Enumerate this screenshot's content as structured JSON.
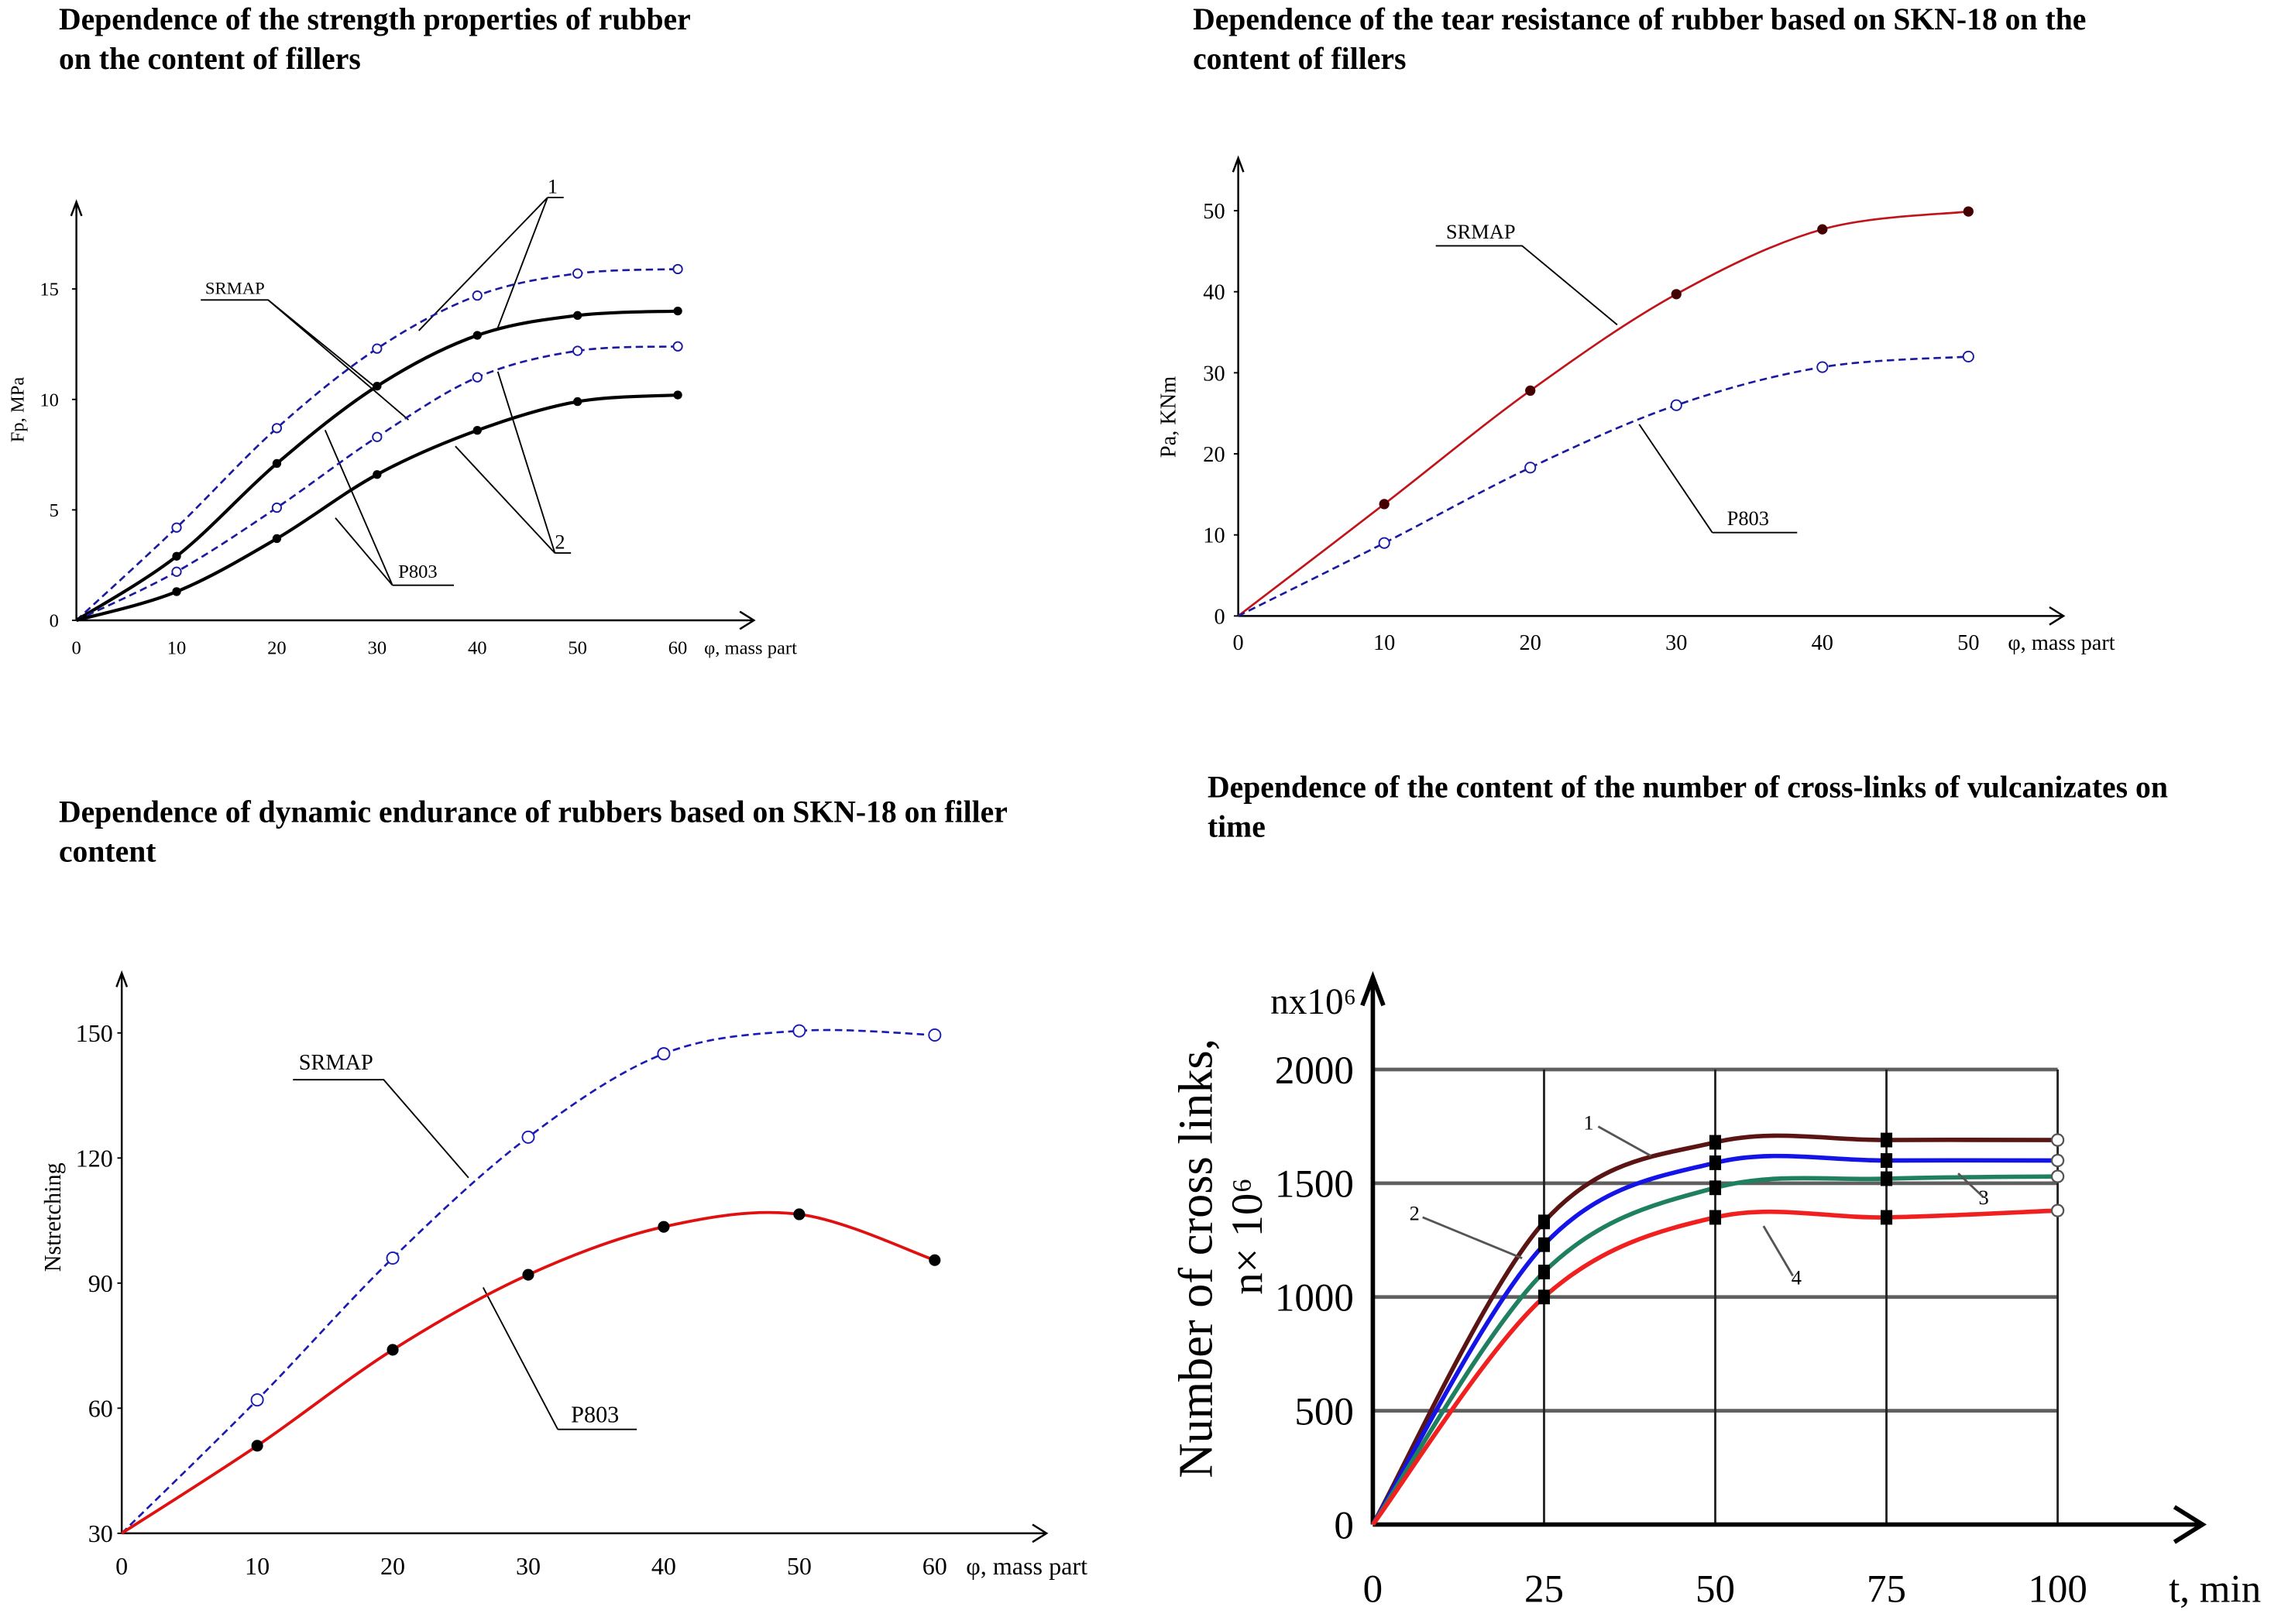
{
  "chart_data": [
    {
      "type": "line",
      "title": [
        "Dependence of the strength properties of rubber",
        "on the content of fillers"
      ],
      "xlabel": "φ, mass part",
      "ylabel": "Fp, MPa",
      "xticks": [
        0,
        10,
        20,
        30,
        40,
        50,
        60
      ],
      "yticks": [
        0,
        5,
        10,
        15
      ],
      "xlim": [
        0,
        66
      ],
      "ylim": [
        0,
        19
      ],
      "grid": false,
      "x": [
        0,
        10,
        20,
        30,
        40,
        50,
        60
      ],
      "series": [
        {
          "values": [
            0,
            4.2,
            8.7,
            12.3,
            14.7,
            15.7,
            15.9
          ],
          "color": "#1a1aa0",
          "style": "dashed",
          "marker": "open-circle"
        },
        {
          "values": [
            0,
            2.9,
            7.1,
            10.6,
            12.9,
            13.8,
            14.0
          ],
          "color": "#000000",
          "style": "solid",
          "marker": "filled-circle"
        },
        {
          "values": [
            0,
            2.2,
            5.1,
            8.3,
            11.0,
            12.2,
            12.4
          ],
          "color": "#1a1aa0",
          "style": "dashed",
          "marker": "open-circle"
        },
        {
          "values": [
            0,
            1.3,
            3.7,
            6.6,
            8.6,
            9.9,
            10.2
          ],
          "color": "#000000",
          "style": "solid",
          "marker": "filled-circle"
        }
      ],
      "annotations": [
        "SRMAP",
        "P803",
        "1",
        "2"
      ]
    },
    {
      "type": "line",
      "title": [
        "Dependence of the tear resistance of rubber based on SKN-18 on the",
        "content of fillers"
      ],
      "xlabel": "φ, mass part",
      "ylabel": "Pa, KNm",
      "xticks": [
        0,
        10,
        20,
        30,
        40,
        50
      ],
      "yticks": [
        0,
        10,
        20,
        30,
        40,
        50
      ],
      "xlim": [
        0,
        56
      ],
      "ylim": [
        0,
        56
      ],
      "grid": false,
      "x": [
        0,
        10,
        20,
        30,
        40,
        50
      ],
      "series": [
        {
          "name": "SRMAP",
          "values": [
            0,
            13.8,
            27.8,
            39.7,
            47.7,
            49.9
          ],
          "color": "#c0141a",
          "style": "solid",
          "marker": "filled-circle"
        },
        {
          "name": "P803",
          "values": [
            0,
            9.0,
            18.3,
            26.0,
            30.7,
            32.0
          ],
          "color": "#1a1aa0",
          "style": "dashed",
          "marker": "open-circle"
        }
      ],
      "annotations": [
        "SRMAP",
        "P803"
      ]
    },
    {
      "type": "line",
      "title": [
        "Dependence of dynamic endurance of rubbers based on SKN-18 on filler",
        "content"
      ],
      "xlabel": "φ, mass part",
      "ylabel": "Nstretching",
      "xticks": [
        0,
        10,
        20,
        30,
        40,
        50,
        60
      ],
      "yticks": [
        30,
        60,
        90,
        120,
        150
      ],
      "xlim": [
        0,
        68
      ],
      "ylim": [
        30,
        164
      ],
      "grid": false,
      "x": [
        0,
        10,
        20,
        30,
        40,
        50,
        60
      ],
      "series": [
        {
          "name": "SRMAP",
          "values": [
            30,
            62,
            96,
            125,
            145,
            150.5,
            149.5
          ],
          "color": "#1a1ab4",
          "style": "dashed",
          "marker": "open-circle"
        },
        {
          "name": "P803",
          "values": [
            30,
            51,
            74,
            92,
            103.5,
            106.5,
            95.5
          ],
          "color": "#e01010",
          "style": "solid",
          "marker": "filled-circle"
        }
      ],
      "annotations": [
        "SRMAP",
        "P803"
      ]
    },
    {
      "type": "line",
      "title": [
        "Dependence of the content of the number of cross-links of vulcanizates on",
        "time"
      ],
      "xlabel": "t, min",
      "ylabel": [
        "Number of cross links,",
        "n× 10⁶"
      ],
      "yunit": "nx10⁶",
      "xticks": [
        0,
        25,
        50,
        75,
        100
      ],
      "yticks": [
        0,
        500,
        1000,
        1500,
        2000
      ],
      "xlim": [
        0,
        120
      ],
      "ylim": [
        0,
        2350
      ],
      "grid": true,
      "x": [
        0,
        25,
        50,
        75,
        100
      ],
      "series": [
        {
          "name": "1",
          "values": [
            0,
            1330,
            1680,
            1690,
            1690
          ],
          "color": "#5a1414",
          "style": "solid",
          "marker": "square"
        },
        {
          "name": "2",
          "values": [
            0,
            1230,
            1590,
            1600,
            1600
          ],
          "color": "#1414e6",
          "style": "solid",
          "marker": "square"
        },
        {
          "name": "3",
          "values": [
            0,
            1110,
            1480,
            1520,
            1530
          ],
          "color": "#1f8060",
          "style": "solid",
          "marker": "square"
        },
        {
          "name": "4",
          "values": [
            0,
            1000,
            1350,
            1350,
            1380
          ],
          "color": "#f02020",
          "style": "solid",
          "marker": "square"
        }
      ],
      "annotations": [
        "1",
        "2",
        "3",
        "4"
      ]
    }
  ]
}
